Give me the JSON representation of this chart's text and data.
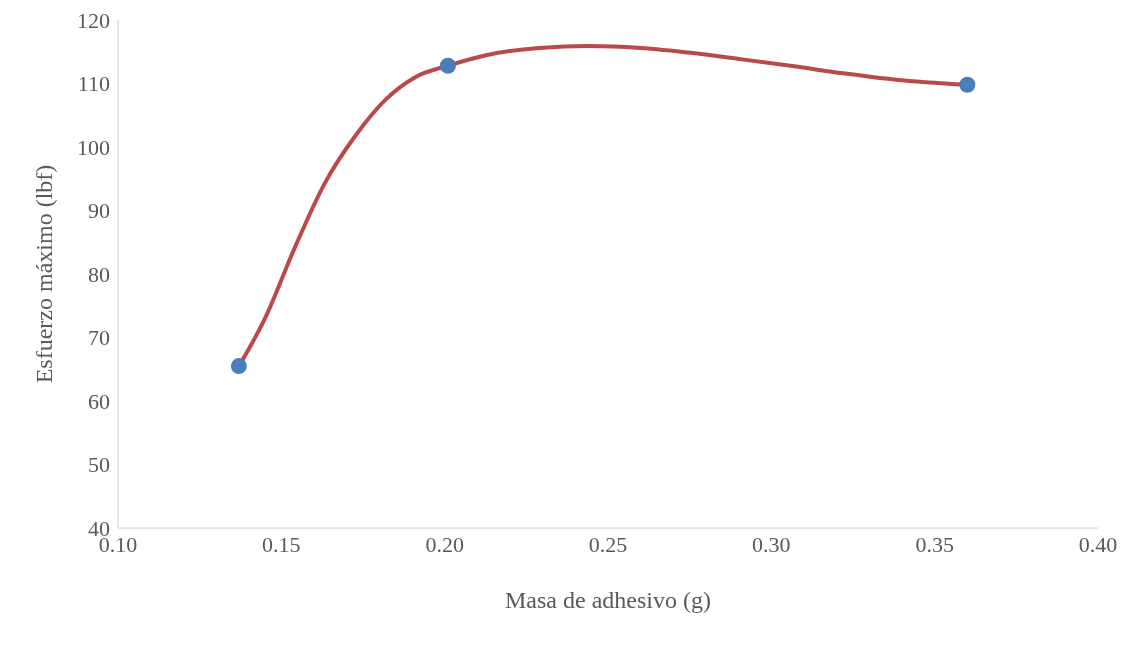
{
  "chart_data": {
    "type": "scatter",
    "xlabel": "Masa de adhesivo (g)",
    "ylabel": "Esfuerzo máximo (lbf)",
    "xlim": [
      0.1,
      0.4
    ],
    "xticks": [
      {
        "value": 0.1,
        "label": "0.10"
      },
      {
        "value": 0.15,
        "label": "0.15"
      },
      {
        "value": 0.2,
        "label": "0.20"
      },
      {
        "value": 0.25,
        "label": "0.25"
      },
      {
        "value": 0.3,
        "label": "0.30"
      },
      {
        "value": 0.35,
        "label": "0.35"
      },
      {
        "value": 0.4,
        "label": "0.40"
      }
    ],
    "ylim": [
      40,
      120
    ],
    "yticks": [
      40,
      50,
      60,
      70,
      80,
      90,
      100,
      110,
      120
    ],
    "grid": false,
    "series": [
      {
        "type": "line",
        "color": "#b94a48",
        "marker": "none",
        "x": [
          0.137,
          0.145,
          0.154,
          0.163,
          0.173,
          0.182,
          0.191,
          0.201,
          0.213,
          0.229,
          0.244,
          0.26,
          0.276,
          0.291,
          0.307,
          0.322,
          0.338,
          0.36
        ],
        "values": [
          65.5,
          73,
          84,
          94,
          102,
          107.5,
          111,
          112.8,
          114.5,
          115.6,
          115.9,
          115.6,
          114.8,
          113.8,
          112.7,
          111.6,
          110.6,
          109.8
        ]
      },
      {
        "color": "#4a7ebb",
        "marker": "circle",
        "x": [
          0.137,
          0.201,
          0.36
        ],
        "values": [
          65.5,
          112.8,
          109.8
        ]
      }
    ]
  }
}
